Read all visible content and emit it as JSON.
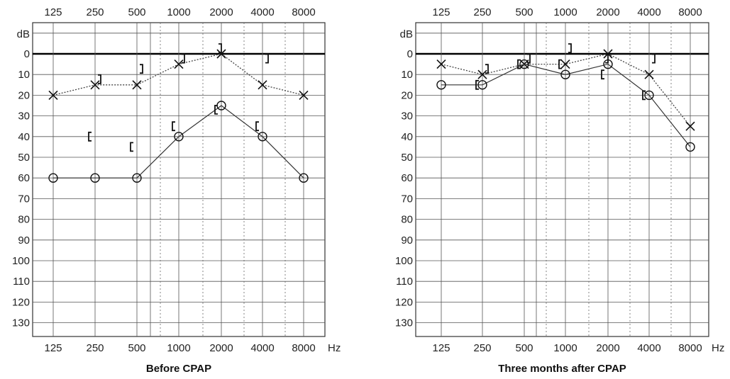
{
  "chart_data": [
    {
      "type": "line",
      "caption": "Before CPAP",
      "x_unit": "Hz",
      "y_unit": "dB",
      "x": [
        125,
        250,
        500,
        1000,
        2000,
        4000,
        8000
      ],
      "x_tick_labels": [
        "125",
        "250",
        "500",
        "1000",
        "2000",
        "4000",
        "8000"
      ],
      "y_tick_labels": [
        "0",
        "10",
        "20",
        "30",
        "40",
        "50",
        "60",
        "70",
        "80",
        "90",
        "100",
        "110",
        "120",
        "130"
      ],
      "ylim": [
        -10,
        135
      ],
      "y_inverted": true,
      "grid": true,
      "series": [
        {
          "marker": "x",
          "line": "dotted",
          "values": [
            20,
            15,
            15,
            5,
            0,
            15,
            20
          ]
        },
        {
          "marker": "o",
          "line": "solid",
          "values": [
            60,
            60,
            60,
            40,
            25,
            40,
            60
          ]
        },
        {
          "marker": "bracket-right",
          "values": [
            null,
            15,
            10,
            5,
            0,
            5,
            null
          ]
        },
        {
          "marker": "bracket-left",
          "values": [
            null,
            40,
            45,
            35,
            27,
            35,
            null
          ]
        }
      ]
    },
    {
      "type": "line",
      "caption": "Three months after CPAP",
      "x_unit": "Hz",
      "y_unit": "dB",
      "x": [
        125,
        250,
        500,
        1000,
        2000,
        4000,
        8000
      ],
      "x_tick_labels": [
        "125",
        "250",
        "500",
        "1000",
        "2000",
        "4000",
        "8000"
      ],
      "y_tick_labels": [
        "0",
        "10",
        "20",
        "30",
        "40",
        "50",
        "60",
        "70",
        "80",
        "90",
        "100",
        "110",
        "120",
        "130"
      ],
      "ylim": [
        -10,
        135
      ],
      "y_inverted": true,
      "grid": true,
      "series": [
        {
          "marker": "x",
          "line": "dotted",
          "values": [
            5,
            10,
            5,
            5,
            0,
            10,
            35
          ]
        },
        {
          "marker": "o",
          "line": "solid",
          "values": [
            15,
            15,
            5,
            10,
            5,
            20,
            45
          ]
        },
        {
          "marker": "bracket-right",
          "values": [
            null,
            10,
            5,
            0,
            5,
            5,
            null
          ]
        },
        {
          "marker": "bracket-left",
          "values": [
            null,
            15,
            5,
            5,
            10,
            20,
            null
          ]
        }
      ]
    }
  ]
}
